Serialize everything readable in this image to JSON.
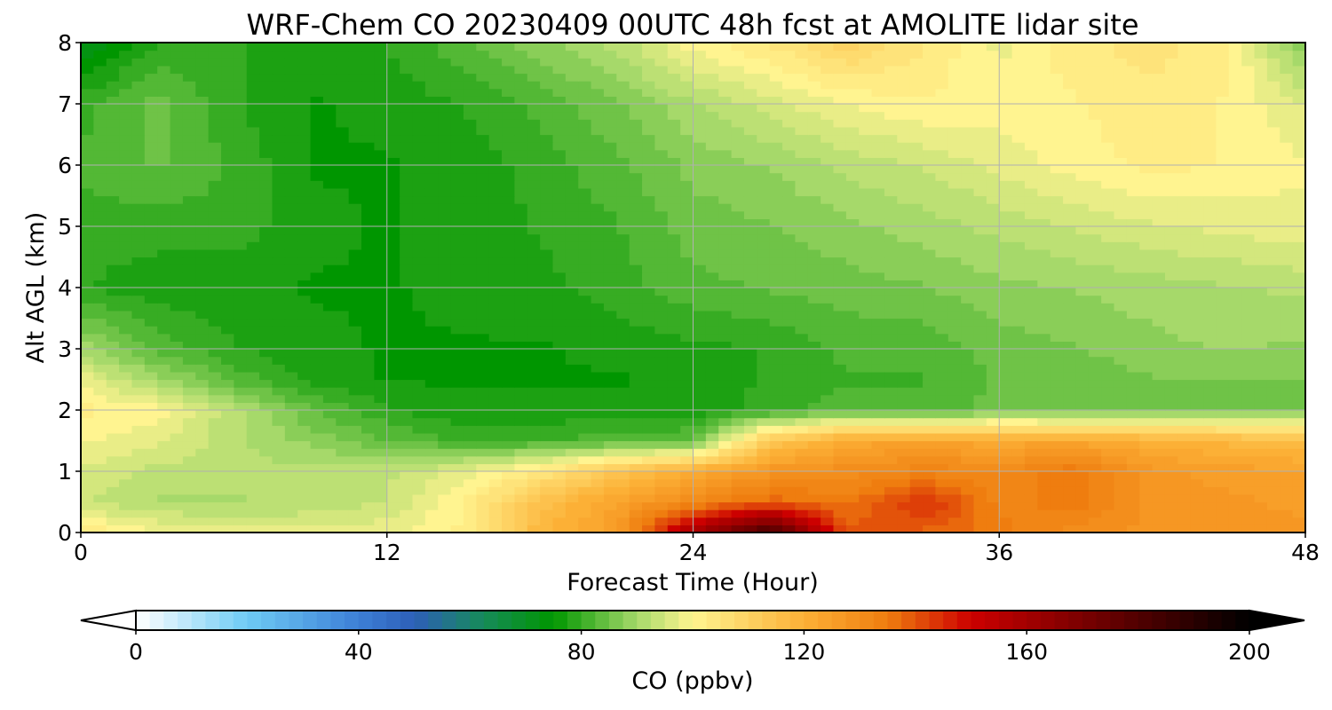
{
  "chart_data": {
    "type": "heatmap",
    "title": "WRF-Chem CO  20230409 00UTC 48h fcst at AMOLITE lidar site",
    "xlabel": "Forecast Time (Hour)",
    "ylabel": "Alt AGL (km)",
    "xlim": [
      0,
      48
    ],
    "ylim": [
      0,
      8
    ],
    "x_ticks": [
      0,
      12,
      24,
      36,
      48
    ],
    "y_ticks": [
      0,
      1,
      2,
      3,
      4,
      5,
      6,
      7,
      8
    ],
    "grid": true,
    "x": [
      0,
      3,
      6,
      9,
      12,
      15,
      18,
      21,
      24,
      27,
      30,
      33,
      36,
      39,
      42,
      45,
      48
    ],
    "y": [
      0,
      0.5,
      1,
      1.5,
      2,
      2.5,
      3,
      4,
      5,
      6,
      7,
      8
    ],
    "z": [
      [
        104,
        99,
        97,
        97,
        98,
        102,
        118,
        126,
        160,
        185,
        140,
        138,
        135,
        130,
        128,
        128,
        128
      ],
      [
        94,
        91,
        91,
        92,
        94,
        101,
        115,
        124,
        132,
        138,
        135,
        145,
        133,
        135,
        128,
        127,
        125
      ],
      [
        96,
        93,
        92,
        92,
        93,
        97,
        104,
        114,
        121,
        128,
        130,
        133,
        131,
        136,
        127,
        125,
        124
      ],
      [
        99,
        97,
        92,
        88,
        84,
        81,
        81,
        83,
        84,
        113,
        122,
        124,
        122,
        123,
        120,
        118,
        116
      ],
      [
        102,
        100,
        92,
        84,
        79,
        77,
        77,
        77,
        77,
        80,
        83,
        82,
        85,
        84,
        86,
        86,
        86
      ],
      [
        98,
        90,
        83,
        78,
        76,
        76,
        76,
        76,
        77,
        79,
        81,
        81,
        84,
        84,
        86,
        86,
        86
      ],
      [
        90,
        83,
        79,
        77,
        76,
        76,
        76,
        77,
        78,
        79,
        82,
        82,
        85,
        86,
        88,
        89,
        88
      ],
      [
        79,
        77,
        77,
        76,
        76,
        77,
        78,
        80,
        83,
        84,
        85,
        86,
        88,
        89,
        90,
        91,
        92
      ],
      [
        80,
        80,
        80,
        77,
        76,
        77,
        79,
        81,
        85,
        86,
        88,
        90,
        92,
        94,
        96,
        97,
        98
      ],
      [
        82,
        84,
        81,
        76,
        76,
        77,
        80,
        83,
        87,
        89,
        92,
        94,
        97,
        100,
        102,
        101,
        99
      ],
      [
        80,
        85,
        79,
        76,
        77,
        79,
        82,
        86,
        91,
        95,
        99,
        101,
        100,
        101,
        103,
        101,
        96
      ],
      [
        71,
        79,
        79,
        77,
        79,
        83,
        88,
        92,
        100,
        104,
        110,
        104,
        98,
        103,
        105,
        102,
        86
      ]
    ],
    "colorbar": {
      "label": "CO  (ppbv)",
      "min": 0,
      "max": 200,
      "ticks": [
        0,
        40,
        80,
        120,
        160,
        200
      ],
      "extend": "both",
      "color_stops": [
        {
          "v": 0,
          "c": "#ffffff"
        },
        {
          "v": 20,
          "c": "#6ecbf5"
        },
        {
          "v": 40,
          "c": "#3d7fd6"
        },
        {
          "v": 50,
          "c": "#2d5fb8"
        },
        {
          "v": 62,
          "c": "#178a5c"
        },
        {
          "v": 75,
          "c": "#009600"
        },
        {
          "v": 90,
          "c": "#a6d96a"
        },
        {
          "v": 100,
          "c": "#fff490"
        },
        {
          "v": 120,
          "c": "#fcb036"
        },
        {
          "v": 135,
          "c": "#ef7d0f"
        },
        {
          "v": 150,
          "c": "#cc0000"
        },
        {
          "v": 170,
          "c": "#7a0000"
        },
        {
          "v": 200,
          "c": "#000000"
        }
      ]
    }
  }
}
